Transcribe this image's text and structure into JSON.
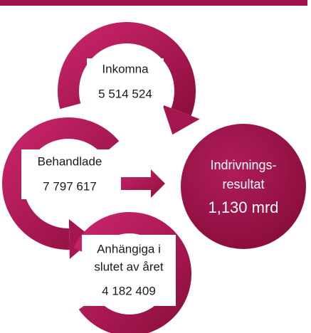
{
  "nodes": [
    {
      "lines": [
        "Inkomna",
        "5 514 524"
      ]
    },
    {
      "lines": [
        "Behandlade",
        "7 797 617"
      ]
    },
    {
      "lines": [
        "Anhängiga i",
        "slutet av året",
        "4 182 409"
      ]
    }
  ],
  "result": {
    "lines": [
      "Indrivnings-",
      "resultat",
      "1,130 mrd"
    ]
  }
}
